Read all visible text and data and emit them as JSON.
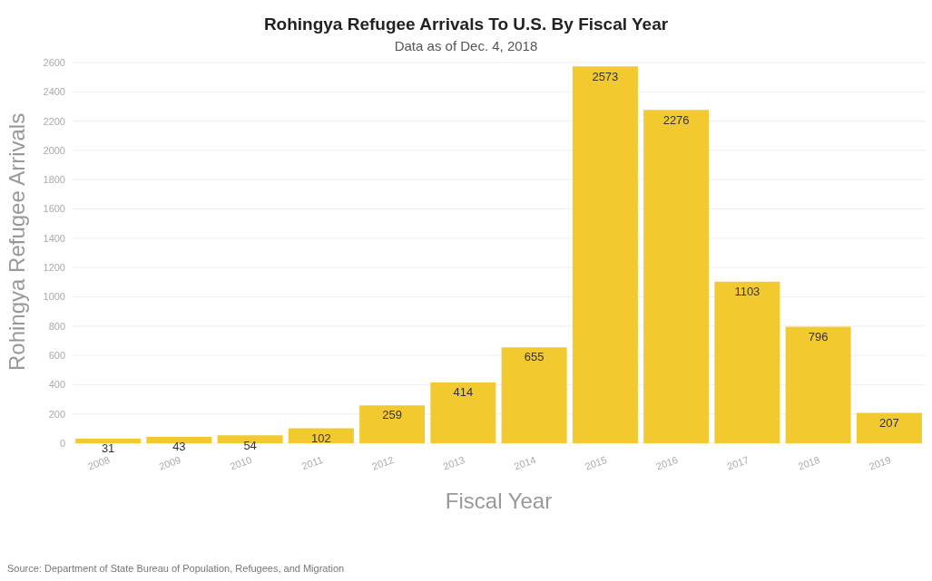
{
  "chart_data": {
    "type": "bar",
    "title": "Rohingya Refugee Arrivals To U.S. By Fiscal Year",
    "subtitle": "Data as of Dec. 4, 2018",
    "xlabel": "Fiscal Year",
    "ylabel": "Rohingya Refugee Arrivals",
    "categories": [
      "2008",
      "2009",
      "2010",
      "2011",
      "2012",
      "2013",
      "2014",
      "2015",
      "2016",
      "2017",
      "2018",
      "2019"
    ],
    "values": [
      31,
      43,
      54,
      102,
      259,
      414,
      655,
      2573,
      2276,
      1103,
      796,
      207
    ],
    "color": "#f2c92f",
    "ylim": [
      0,
      2600
    ],
    "yticks": [
      0,
      200,
      400,
      600,
      800,
      1000,
      1200,
      1400,
      1600,
      1800,
      2000,
      2200,
      2400,
      2600
    ],
    "grid": "y",
    "data_labels": true,
    "annotations": [
      "Source: Department of State Bureau of Population, Refugees, and Migration"
    ]
  }
}
